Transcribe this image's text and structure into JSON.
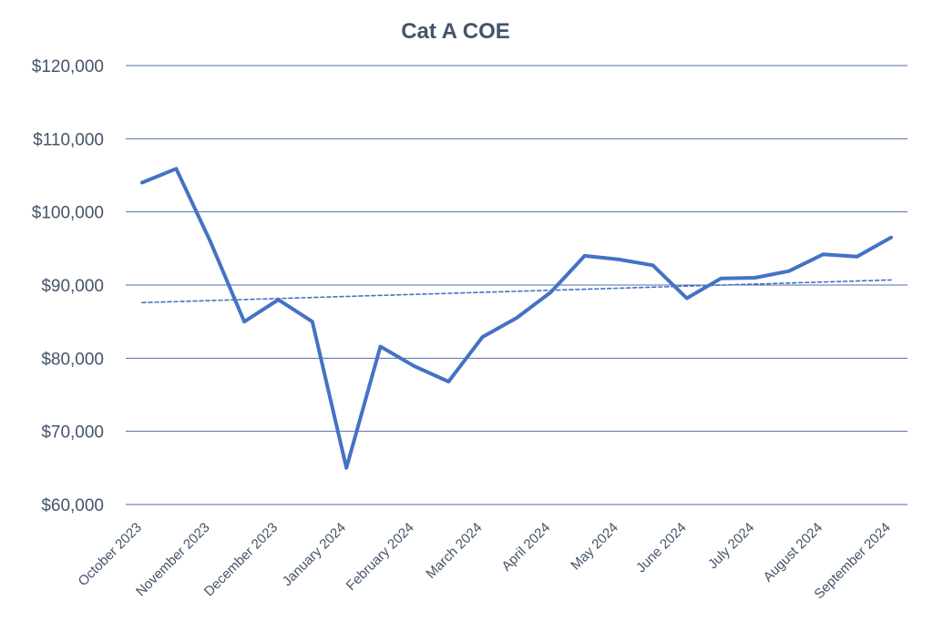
{
  "chart_data": {
    "type": "line",
    "title": "Cat A COE",
    "xlabel": "",
    "ylabel": "",
    "ylim": [
      60000,
      120000
    ],
    "y_ticks": [
      60000,
      70000,
      80000,
      90000,
      100000,
      110000,
      120000
    ],
    "y_tick_labels": [
      "$60,000",
      "$70,000",
      "$80,000",
      "$90,000",
      "$100,000",
      "$110,000",
      "$120,000"
    ],
    "grid": true,
    "legend": "none",
    "x_tick_labels": [
      "October 2023",
      "November 2023",
      "December 2023",
      "January 2024",
      "February 2024",
      "March 2024",
      "April 2024",
      "May 2024",
      "June 2024",
      "July 2024",
      "August 2024",
      "September 2024"
    ],
    "series": [
      {
        "name": "Cat A COE",
        "style": "solid",
        "values": [
          104000,
          105900,
          96000,
          85000,
          88000,
          85000,
          65000,
          81600,
          78900,
          76800,
          82900,
          85500,
          89000,
          94000,
          93500,
          92700,
          88200,
          90900,
          91000,
          91900,
          94200,
          93900,
          96500
        ]
      },
      {
        "name": "Trendline",
        "style": "dashed",
        "values": [
          87600,
          90700
        ]
      }
    ],
    "colors": {
      "line": "#4472C4",
      "grid": "#4F6EA8",
      "text": "#44546A"
    }
  }
}
